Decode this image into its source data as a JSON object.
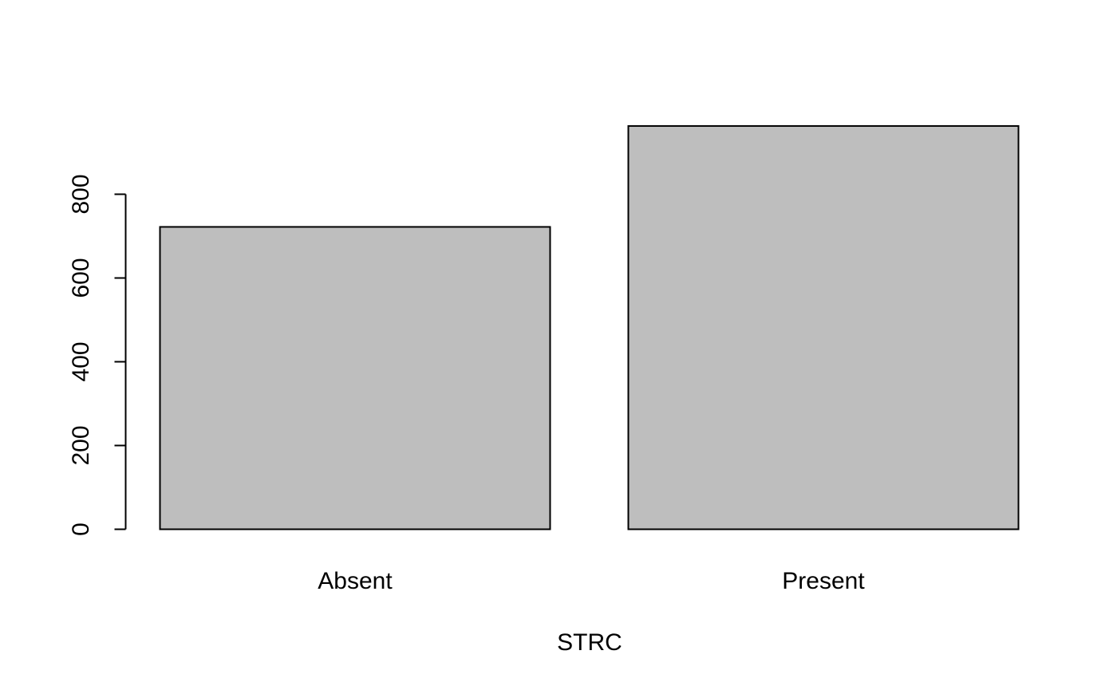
{
  "chart_data": {
    "type": "bar",
    "title": "",
    "xlabel": "STRC",
    "ylabel": "",
    "categories": [
      "Absent",
      "Present"
    ],
    "values": [
      722,
      963
    ],
    "yticks": [
      0,
      200,
      400,
      600,
      800
    ],
    "ylim": [
      0,
      1000
    ],
    "grid": false,
    "legend": "none",
    "bar_fill": "#bebebe",
    "bar_stroke": "#000000"
  }
}
